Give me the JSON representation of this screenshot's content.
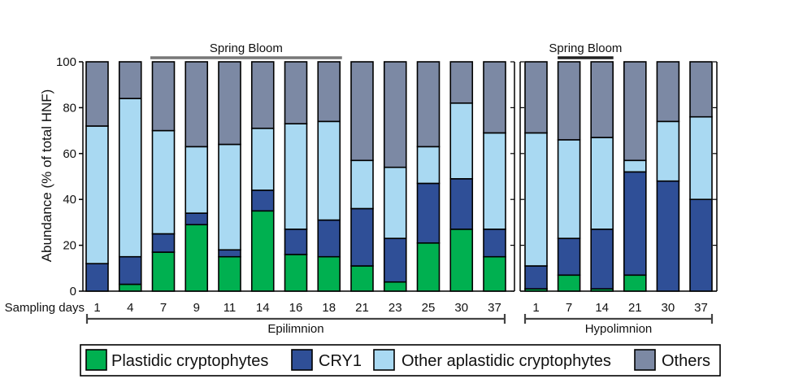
{
  "chart_data": {
    "type": "bar",
    "stacked": true,
    "ylabel": "Abundance (% of total HNF)",
    "ylim": [
      0,
      100
    ],
    "yticks": [
      "0",
      "20",
      "40",
      "60",
      "80",
      "100"
    ],
    "row_label": "Sampling days",
    "series": [
      {
        "name": "Plastidic cryptophytes",
        "color": "#00b050"
      },
      {
        "name": "CRY1",
        "color": "#2f4f97"
      },
      {
        "name": "Other aplastidic cryptophytes",
        "color": "#a9d9f2"
      },
      {
        "name": "Others",
        "color": "#7c89a4"
      }
    ],
    "panels": [
      {
        "name": "Epilimnion",
        "bloom_label": "Spring Bloom",
        "bloom_from_index": 2,
        "bloom_to_index": 7,
        "categories": [
          "1",
          "4",
          "7",
          "9",
          "11",
          "14",
          "16",
          "18",
          "21",
          "23",
          "25",
          "30",
          "37"
        ],
        "values": {
          "Plastidic cryptophytes": [
            0,
            3,
            17,
            29,
            15,
            35,
            16,
            15,
            11,
            4,
            21,
            27,
            15
          ],
          "CRY1": [
            12,
            12,
            8,
            5,
            3,
            9,
            11,
            16,
            25,
            19,
            26,
            22,
            12
          ],
          "Other aplastidic cryptophytes": [
            60,
            69,
            45,
            29,
            46,
            27,
            46,
            43,
            21,
            31,
            16,
            33,
            42
          ],
          "Others": [
            28,
            16,
            30,
            37,
            36,
            29,
            27,
            26,
            43,
            46,
            37,
            18,
            31
          ]
        }
      },
      {
        "name": "Hypolimnion",
        "bloom_label": "Spring Bloom",
        "bloom_from_index": 1,
        "bloom_to_index": 2,
        "categories": [
          "1",
          "7",
          "14",
          "21",
          "30",
          "37"
        ],
        "values": {
          "Plastidic cryptophytes": [
            1,
            7,
            1,
            7,
            0,
            0
          ],
          "CRY1": [
            10,
            16,
            26,
            45,
            48,
            40
          ],
          "Other aplastidic cryptophytes": [
            58,
            43,
            40,
            5,
            26,
            36
          ],
          "Others": [
            31,
            34,
            33,
            43,
            26,
            24
          ]
        }
      }
    ]
  }
}
